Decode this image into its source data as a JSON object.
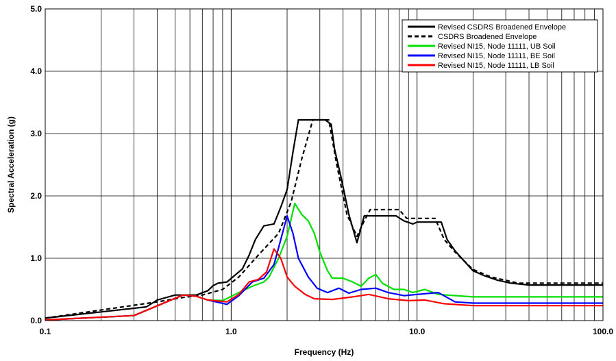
{
  "chart_data": {
    "type": "line",
    "title": "",
    "xlabel": "Frequency (Hz)",
    "ylabel": "Spectral Acceleration (g)",
    "xscale": "log",
    "xlim": [
      0.1,
      100
    ],
    "ylim": [
      0,
      5
    ],
    "grid": true,
    "legend_position": "top-right",
    "x_ticks": [
      "0.1",
      "1.0",
      "10.0",
      "100.0"
    ],
    "y_ticks": [
      "0.0",
      "1.0",
      "2.0",
      "3.0",
      "4.0",
      "5.0"
    ],
    "series": [
      {
        "name": "Revised CSDRS Broadened Envelope",
        "color": "#000000",
        "style": "solid",
        "points": [
          [
            0.1,
            0.04
          ],
          [
            0.2,
            0.14
          ],
          [
            0.35,
            0.22
          ],
          [
            0.4,
            0.33
          ],
          [
            0.5,
            0.41
          ],
          [
            0.65,
            0.41
          ],
          [
            0.75,
            0.48
          ],
          [
            0.8,
            0.56
          ],
          [
            0.85,
            0.6
          ],
          [
            0.95,
            0.62
          ],
          [
            1.15,
            0.83
          ],
          [
            1.25,
            1.05
          ],
          [
            1.35,
            1.3
          ],
          [
            1.5,
            1.52
          ],
          [
            1.7,
            1.55
          ],
          [
            1.85,
            1.82
          ],
          [
            2.0,
            2.1
          ],
          [
            2.15,
            2.7
          ],
          [
            2.3,
            3.22
          ],
          [
            3.2,
            3.22
          ],
          [
            3.45,
            3.15
          ],
          [
            3.6,
            2.75
          ],
          [
            3.9,
            2.3
          ],
          [
            4.3,
            1.7
          ],
          [
            4.75,
            1.25
          ],
          [
            5.2,
            1.68
          ],
          [
            7.7,
            1.68
          ],
          [
            8.5,
            1.6
          ],
          [
            9.5,
            1.55
          ],
          [
            10,
            1.58
          ],
          [
            13.5,
            1.58
          ],
          [
            14.5,
            1.3
          ],
          [
            16,
            1.12
          ],
          [
            18,
            0.95
          ],
          [
            20,
            0.8
          ],
          [
            23,
            0.72
          ],
          [
            27,
            0.65
          ],
          [
            32,
            0.6
          ],
          [
            40,
            0.57
          ],
          [
            100,
            0.57
          ]
        ]
      },
      {
        "name": "CSDRS Broadened Envelope",
        "color": "#000000",
        "style": "dashed",
        "points": [
          [
            0.1,
            0.04
          ],
          [
            0.4,
            0.3
          ],
          [
            0.55,
            0.37
          ],
          [
            0.7,
            0.41
          ],
          [
            0.9,
            0.5
          ],
          [
            1.1,
            0.7
          ],
          [
            1.4,
            1.05
          ],
          [
            1.8,
            1.4
          ],
          [
            2.1,
            1.9
          ],
          [
            2.4,
            2.6
          ],
          [
            2.75,
            3.22
          ],
          [
            3.35,
            3.22
          ],
          [
            3.7,
            2.5
          ],
          [
            4.2,
            1.7
          ],
          [
            4.75,
            1.35
          ],
          [
            5.2,
            1.6
          ],
          [
            5.6,
            1.78
          ],
          [
            8.0,
            1.78
          ],
          [
            8.8,
            1.64
          ],
          [
            12.5,
            1.64
          ],
          [
            14,
            1.3
          ],
          [
            16,
            1.1
          ],
          [
            20,
            0.82
          ],
          [
            25,
            0.7
          ],
          [
            35,
            0.6
          ],
          [
            100,
            0.6
          ]
        ]
      },
      {
        "name": "Revised NI15, Node 11111, UB Soil",
        "color": "#00e000",
        "style": "solid",
        "points": [
          [
            0.1,
            0.01
          ],
          [
            0.3,
            0.08
          ],
          [
            0.45,
            0.3
          ],
          [
            0.55,
            0.41
          ],
          [
            0.65,
            0.39
          ],
          [
            0.75,
            0.33
          ],
          [
            0.9,
            0.32
          ],
          [
            1.1,
            0.45
          ],
          [
            1.3,
            0.55
          ],
          [
            1.5,
            0.62
          ],
          [
            1.6,
            0.7
          ],
          [
            1.8,
            1.0
          ],
          [
            2.0,
            1.35
          ],
          [
            2.2,
            1.88
          ],
          [
            2.4,
            1.7
          ],
          [
            2.6,
            1.6
          ],
          [
            2.8,
            1.4
          ],
          [
            3.0,
            1.1
          ],
          [
            3.3,
            0.8
          ],
          [
            3.5,
            0.68
          ],
          [
            4.0,
            0.68
          ],
          [
            4.5,
            0.62
          ],
          [
            5.0,
            0.55
          ],
          [
            5.5,
            0.68
          ],
          [
            6.0,
            0.74
          ],
          [
            6.5,
            0.6
          ],
          [
            7.5,
            0.5
          ],
          [
            8.5,
            0.5
          ],
          [
            9.5,
            0.45
          ],
          [
            11,
            0.5
          ],
          [
            13,
            0.42
          ],
          [
            20,
            0.38
          ],
          [
            100,
            0.38
          ]
        ]
      },
      {
        "name": "Revised NI15, Node 11111, BE Soil",
        "color": "#0000ff",
        "style": "solid",
        "points": [
          [
            0.1,
            0.01
          ],
          [
            0.3,
            0.08
          ],
          [
            0.45,
            0.3
          ],
          [
            0.55,
            0.41
          ],
          [
            0.65,
            0.39
          ],
          [
            0.75,
            0.33
          ],
          [
            0.95,
            0.26
          ],
          [
            1.1,
            0.4
          ],
          [
            1.3,
            0.62
          ],
          [
            1.5,
            0.68
          ],
          [
            1.7,
            0.9
          ],
          [
            1.85,
            1.3
          ],
          [
            2.0,
            1.68
          ],
          [
            2.15,
            1.4
          ],
          [
            2.3,
            1.0
          ],
          [
            2.6,
            0.7
          ],
          [
            2.9,
            0.52
          ],
          [
            3.3,
            0.45
          ],
          [
            3.8,
            0.52
          ],
          [
            4.3,
            0.44
          ],
          [
            5.0,
            0.5
          ],
          [
            6.0,
            0.52
          ],
          [
            7.0,
            0.45
          ],
          [
            8.5,
            0.4
          ],
          [
            10,
            0.42
          ],
          [
            13,
            0.45
          ],
          [
            16,
            0.3
          ],
          [
            20,
            0.28
          ],
          [
            100,
            0.28
          ]
        ]
      },
      {
        "name": "Revised NI15, Node 11111, LB Soil",
        "color": "#ff0000",
        "style": "solid",
        "points": [
          [
            0.1,
            0.01
          ],
          [
            0.3,
            0.08
          ],
          [
            0.45,
            0.3
          ],
          [
            0.55,
            0.41
          ],
          [
            0.65,
            0.39
          ],
          [
            0.75,
            0.33
          ],
          [
            0.95,
            0.3
          ],
          [
            1.1,
            0.42
          ],
          [
            1.25,
            0.62
          ],
          [
            1.4,
            0.66
          ],
          [
            1.55,
            0.78
          ],
          [
            1.7,
            1.15
          ],
          [
            1.85,
            1.0
          ],
          [
            2.0,
            0.7
          ],
          [
            2.2,
            0.55
          ],
          [
            2.5,
            0.42
          ],
          [
            2.8,
            0.35
          ],
          [
            3.5,
            0.34
          ],
          [
            4.5,
            0.38
          ],
          [
            5.5,
            0.42
          ],
          [
            7.0,
            0.35
          ],
          [
            9.0,
            0.32
          ],
          [
            11,
            0.33
          ],
          [
            14,
            0.27
          ],
          [
            20,
            0.24
          ],
          [
            100,
            0.24
          ]
        ]
      }
    ]
  }
}
